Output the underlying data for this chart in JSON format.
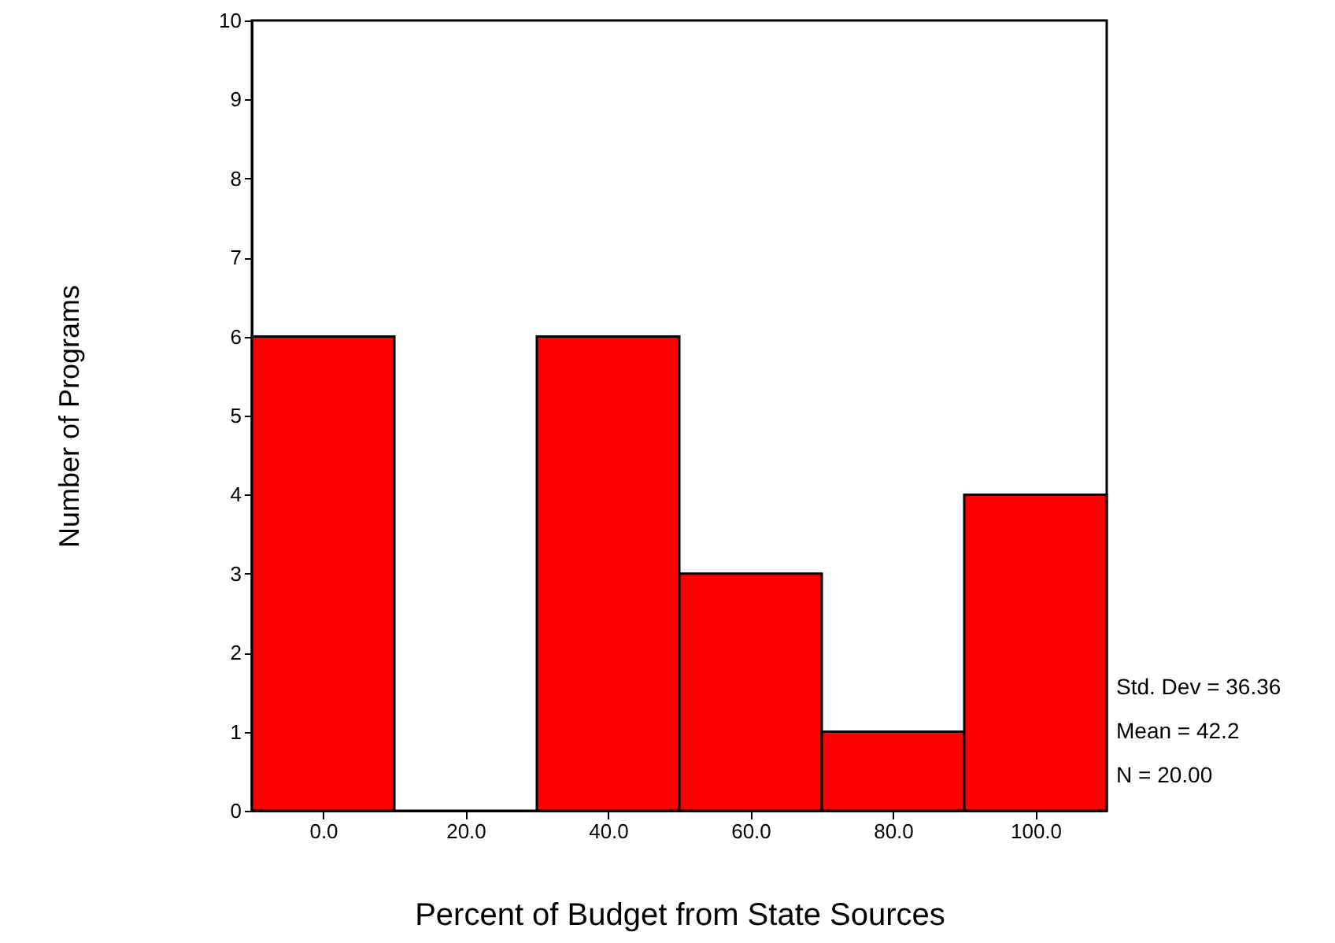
{
  "chart_data": {
    "type": "histogram",
    "xlabel": "Percent of Budget from State Sources",
    "ylabel": "Number of Programs",
    "bins": [
      -10,
      10,
      30,
      50,
      70,
      90,
      110
    ],
    "values": [
      6,
      0,
      6,
      3,
      1,
      4
    ],
    "color": "#ff0000",
    "xlim": [
      -10,
      110
    ],
    "xticks": [
      {
        "value": 0,
        "label": "0.0"
      },
      {
        "value": 20,
        "label": "20.0"
      },
      {
        "value": 40,
        "label": "40.0"
      },
      {
        "value": 60,
        "label": "60.0"
      },
      {
        "value": 80,
        "label": "80.0"
      },
      {
        "value": 100,
        "label": "100.0"
      }
    ],
    "ylim": [
      0,
      10
    ],
    "yticks": [
      0,
      1,
      2,
      3,
      4,
      5,
      6,
      7,
      8,
      9,
      10
    ],
    "grid": false,
    "annotations": [
      "Std. Dev = 36.36",
      "Mean = 42.2",
      "N = 20.00"
    ]
  }
}
